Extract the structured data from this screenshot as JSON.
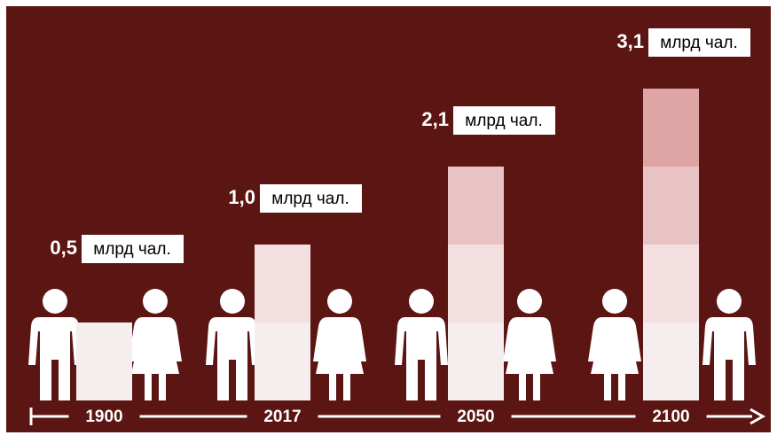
{
  "chart_data": {
    "type": "stepbar",
    "categories": [
      "1900",
      "2017",
      "2050",
      "2100"
    ],
    "values": [
      0.5,
      1.0,
      2.1,
      3.1
    ],
    "value_labels": [
      "0,5",
      "1,0",
      "2,1",
      "3,1"
    ],
    "unit": "млрд чал.",
    "background": "#5b1614",
    "segment_colors": [
      "#f6eeee",
      "#f3dfdf",
      "#e9c3c3",
      "#dfa4a4"
    ]
  }
}
